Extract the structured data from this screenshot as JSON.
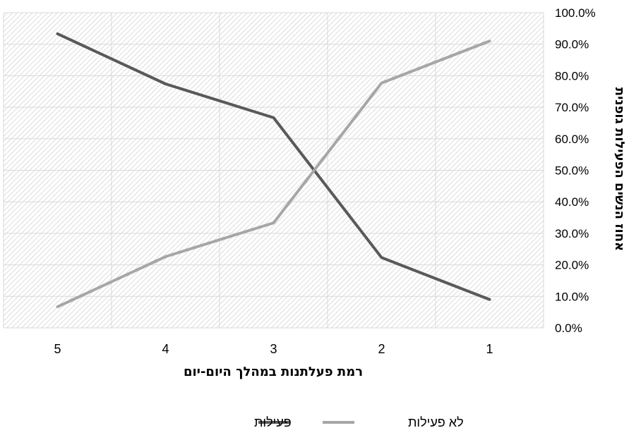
{
  "chart_data": {
    "type": "line",
    "categories": [
      "5",
      "4",
      "3",
      "2",
      "1"
    ],
    "series": [
      {
        "name": "פעילות",
        "values": [
          93.3,
          77.4,
          66.7,
          22.3,
          9.0
        ],
        "color": "#595959"
      },
      {
        "name": "לא פעילות",
        "values": [
          6.7,
          22.6,
          33.3,
          77.7,
          91.0
        ],
        "color": "#a6a6a6"
      }
    ],
    "xlabel": "רמת פעלתנות במהלך היום-יום",
    "ylabel": "אחוז הנשים הפעילות גופנית",
    "ylim": [
      0,
      100
    ],
    "yticks": [
      "0.0%",
      "10.0%",
      "20.0%",
      "30.0%",
      "40.0%",
      "50.0%",
      "60.0%",
      "70.0%",
      "80.0%",
      "90.0%",
      "100.0%"
    ],
    "y_axis_position": "right",
    "grid": true,
    "legend_position": "bottom",
    "plot_background": "hatched gray",
    "legend": [
      "לא פעילות",
      "פעילות"
    ]
  }
}
